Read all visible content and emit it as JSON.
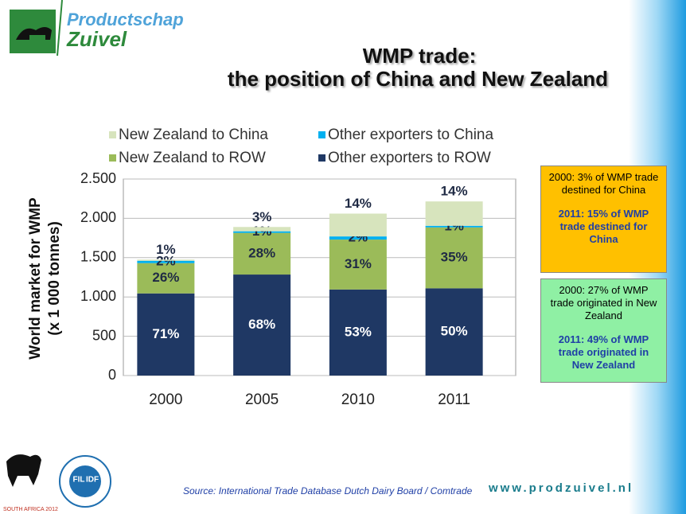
{
  "brand": {
    "line1": "Productschap",
    "line2": "Zuivel"
  },
  "title_lines": [
    "WMP trade:",
    "the position of China and New Zealand"
  ],
  "chart_data": {
    "type": "stacked_bar",
    "y_label_lines": [
      "World market for WMP",
      "(x 1 000 tonnes)"
    ],
    "categories": [
      "2000",
      "2005",
      "2010",
      "2011"
    ],
    "series": [
      {
        "name": "Other exporters to ROW",
        "color": "#1f3864",
        "values": [
          1045,
          1285,
          1095,
          1110
        ],
        "share_labels": [
          "71%",
          "68%",
          "53%",
          "50%"
        ]
      },
      {
        "name": "New Zealand to ROW",
        "color": "#9bbb59",
        "values": [
          385,
          530,
          635,
          775
        ],
        "share_labels": [
          "26%",
          "28%",
          "31%",
          "35%"
        ]
      },
      {
        "name": "Other exporters to China",
        "color": "#00b0f0",
        "values": [
          30,
          20,
          40,
          20
        ],
        "share_labels": [
          "2%",
          "1%",
          "2%",
          "1%"
        ]
      },
      {
        "name": "New Zealand to China",
        "color": "#d7e4bd",
        "values": [
          15,
          55,
          290,
          310
        ],
        "share_labels": [
          "1%",
          "3%",
          "14%",
          "14%"
        ]
      }
    ],
    "ylim": [
      0,
      2500
    ],
    "yticks": [
      0,
      500,
      {
        "value": 1000,
        "label": "1.000"
      },
      {
        "value": 1500,
        "label": "1.500"
      },
      {
        "value": 2000,
        "label": "2.000"
      },
      {
        "value": 2500,
        "label": "2.500"
      }
    ],
    "grid": true
  },
  "boxes": [
    {
      "normal": "2000: 3% of WMP trade destined for China",
      "bold": "2011: 15% of WMP trade destined for China"
    },
    {
      "normal": "2000:  27% of WMP trade originated in New Zealand",
      "bold": "2011:  49% of WMP trade originated in New Zealand"
    }
  ],
  "source": "Source: International Trade Database Dutch Dairy Board / Comtrade",
  "url": "www.prodzuivel.nl",
  "event": "SOUTH AFRICA 2012",
  "idf": [
    "FIL",
    "IDF"
  ]
}
